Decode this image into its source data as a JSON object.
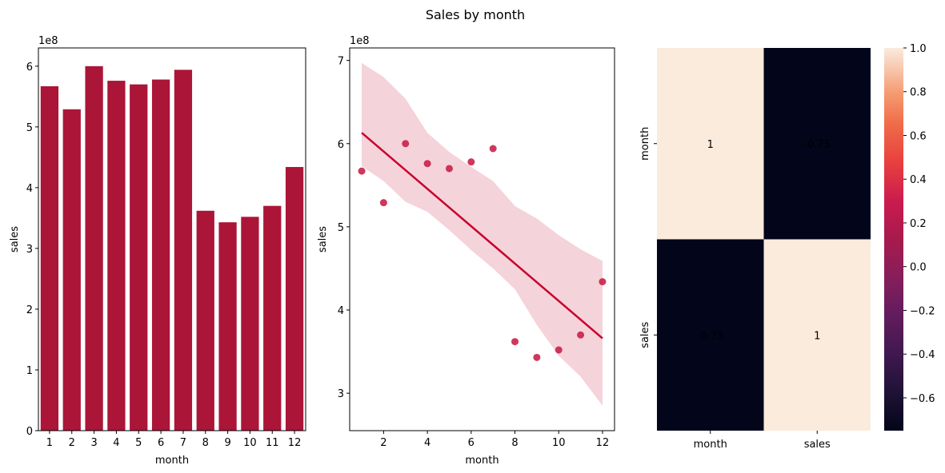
{
  "figure": {
    "suptitle": "Sales by month"
  },
  "chart_data": [
    {
      "type": "bar",
      "xlabel": "month",
      "ylabel": "sales",
      "offset_text": "1e8",
      "categories": [
        "1",
        "2",
        "3",
        "4",
        "5",
        "6",
        "7",
        "8",
        "9",
        "10",
        "11",
        "12"
      ],
      "values": [
        5.67,
        5.29,
        6.0,
        5.76,
        5.7,
        5.78,
        5.94,
        3.62,
        3.43,
        3.52,
        3.7,
        4.34
      ],
      "ylim": [
        0,
        6.3
      ],
      "yticks": [
        0,
        1,
        2,
        3,
        4,
        5,
        6
      ],
      "color": "#ab1538"
    },
    {
      "type": "scatter",
      "xlabel": "month",
      "ylabel": "sales",
      "offset_text": "1e8",
      "x": [
        1,
        2,
        3,
        4,
        5,
        6,
        7,
        8,
        9,
        10,
        11,
        12
      ],
      "y": [
        5.67,
        5.29,
        6.0,
        5.76,
        5.7,
        5.78,
        5.94,
        3.62,
        3.43,
        3.52,
        3.7,
        4.34
      ],
      "regression": {
        "x": [
          1,
          12
        ],
        "y": [
          6.13,
          3.66
        ],
        "ci_x": [
          1,
          2,
          3,
          4,
          5,
          6,
          7,
          8,
          9,
          10,
          11,
          12
        ],
        "ci_upper": [
          6.97,
          6.8,
          6.54,
          6.13,
          5.9,
          5.72,
          5.55,
          5.25,
          5.1,
          4.9,
          4.73,
          4.59
        ],
        "ci_lower": [
          5.73,
          5.55,
          5.3,
          5.18,
          4.96,
          4.72,
          4.5,
          4.25,
          3.82,
          3.45,
          3.2,
          2.85
        ]
      },
      "xlim": [
        0.45,
        12.55
      ],
      "ylim": [
        2.55,
        7.15
      ],
      "xticks": [
        2,
        4,
        6,
        8,
        10,
        12
      ],
      "yticks": [
        3,
        4,
        5,
        6,
        7
      ],
      "point_color": "#c8143f",
      "line_color": "#c8002b",
      "band_color": "#f5d3db"
    },
    {
      "type": "heatmap",
      "rows": [
        "month",
        "sales"
      ],
      "cols": [
        "month",
        "sales"
      ],
      "values": [
        [
          1,
          -0.75
        ],
        [
          -0.75,
          1
        ]
      ],
      "annotations": [
        [
          "1",
          "-0.75"
        ],
        [
          "-0.75",
          "1"
        ]
      ],
      "colorbar": {
        "range": [
          -0.75,
          1
        ],
        "ticks": [
          1.0,
          0.8,
          0.6,
          0.4,
          0.2,
          0.0,
          -0.2,
          -0.4,
          -0.6
        ],
        "tick_labels": [
          "1.0",
          "0.8",
          "0.6",
          "0.4",
          "0.2",
          "0.0",
          "−0.2",
          "−0.4",
          "−0.6"
        ],
        "colormap": "rocket"
      },
      "colors": {
        "high": "#faebdd",
        "low": "#03051a"
      }
    }
  ]
}
